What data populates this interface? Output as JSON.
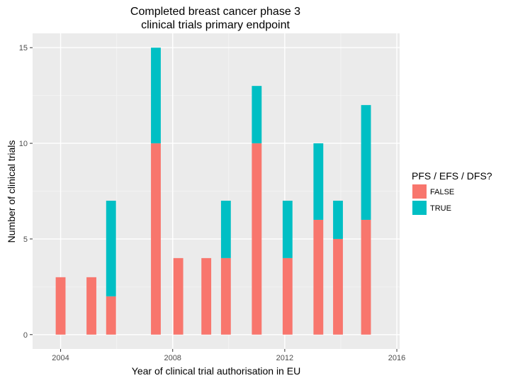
{
  "chart_data": {
    "type": "bar",
    "stacked": true,
    "title_lines": [
      "Completed breast cancer phase 3",
      "clinical trials primary endpoint"
    ],
    "xlabel": "Year of clinical trial authorisation in EU",
    "ylabel": "Number of clinical trials",
    "xlim": [
      2003,
      2016.1
    ],
    "ylim": [
      -0.75,
      15.75
    ],
    "x_ticks": [
      2004,
      2008,
      2012,
      2016
    ],
    "y_ticks": [
      0,
      5,
      10,
      15
    ],
    "bar_width_years": 0.35,
    "x": [
      2004,
      2005.1,
      2005.8,
      2007.4,
      2008.2,
      2009.2,
      2009.9,
      2011,
      2012.1,
      2013.2,
      2013.9,
      2014.9
    ],
    "series": [
      {
        "name": "FALSE",
        "color": "#F8766D",
        "values": [
          3,
          3,
          2,
          10,
          4,
          4,
          4,
          10,
          4,
          6,
          5,
          6
        ]
      },
      {
        "name": "TRUE",
        "color": "#00BFC4",
        "values": [
          0,
          0,
          5,
          5,
          0,
          0,
          3,
          3,
          3,
          4,
          2,
          6
        ]
      }
    ],
    "legend": {
      "title": "PFS / EFS / DFS?",
      "position": "right"
    },
    "grid": true,
    "panel_background": "#EBEBEB"
  }
}
